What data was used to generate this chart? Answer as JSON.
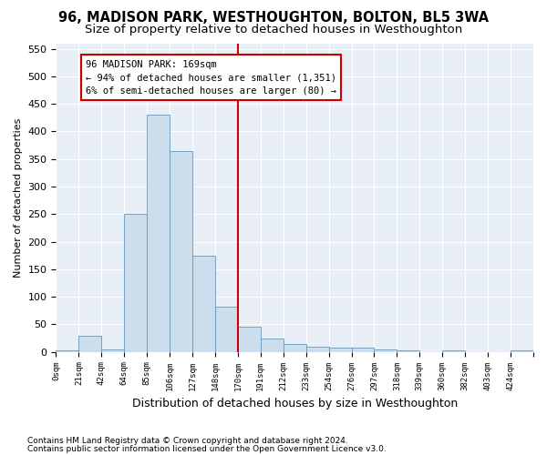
{
  "title1": "96, MADISON PARK, WESTHOUGHTON, BOLTON, BL5 3WA",
  "title2": "Size of property relative to detached houses in Westhoughton",
  "xlabel": "Distribution of detached houses by size in Westhoughton",
  "ylabel": "Number of detached properties",
  "footnote1": "Contains HM Land Registry data © Crown copyright and database right 2024.",
  "footnote2": "Contains public sector information licensed under the Open Government Licence v3.0.",
  "annotation_title": "96 MADISON PARK: 169sqm",
  "annotation_line1": "← 94% of detached houses are smaller (1,351)",
  "annotation_line2": "6% of semi-detached houses are larger (80) →",
  "bar_color": "#ccdded",
  "bar_edge_color": "#6699bb",
  "vline_color": "#cc0000",
  "annotation_box_edgecolor": "#cc0000",
  "categories": [
    "0sqm",
    "21sqm",
    "42sqm",
    "64sqm",
    "85sqm",
    "106sqm",
    "127sqm",
    "148sqm",
    "170sqm",
    "191sqm",
    "212sqm",
    "233sqm",
    "254sqm",
    "276sqm",
    "297sqm",
    "318sqm",
    "339sqm",
    "360sqm",
    "382sqm",
    "403sqm",
    "424sqm"
  ],
  "values": [
    2,
    30,
    4,
    250,
    430,
    365,
    175,
    82,
    45,
    25,
    15,
    10,
    8,
    8,
    5,
    2,
    0,
    2,
    0,
    0,
    2
  ],
  "vline_x": 8.0,
  "ylim": [
    0,
    560
  ],
  "yticks": [
    0,
    50,
    100,
    150,
    200,
    250,
    300,
    350,
    400,
    450,
    500,
    550
  ],
  "background_color": "#e8eff6",
  "grid_color": "#ffffff",
  "title1_fontsize": 10.5,
  "title2_fontsize": 9.5,
  "annotation_fontsize": 7.5,
  "ylabel_fontsize": 8,
  "xlabel_fontsize": 9,
  "footnote_fontsize": 6.5
}
